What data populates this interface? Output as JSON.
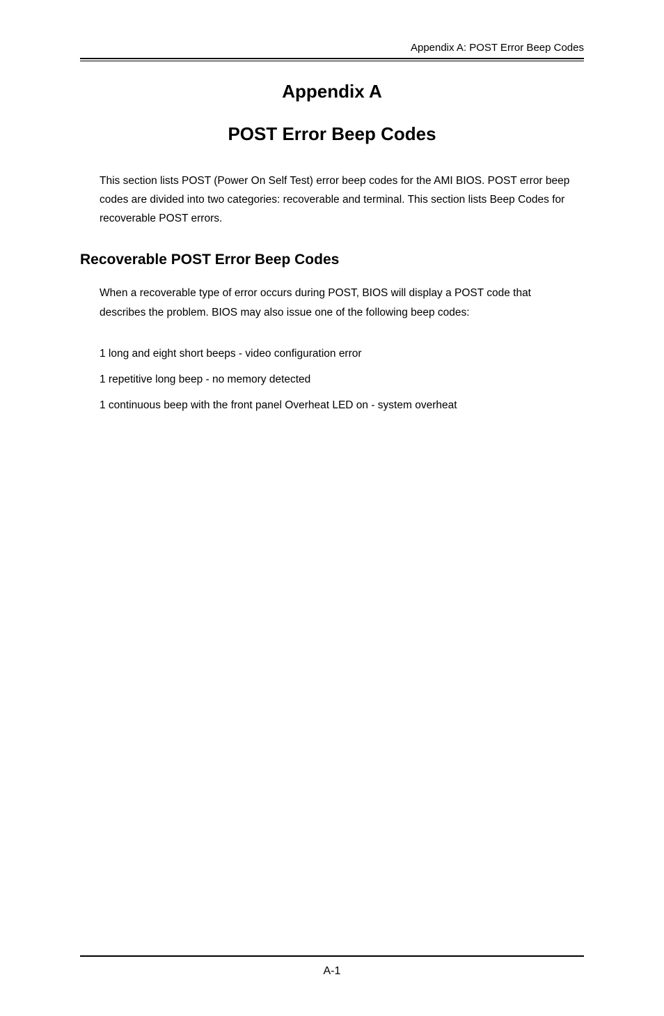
{
  "header": {
    "running": "Appendix A: POST Error Beep Codes"
  },
  "title": {
    "appendix": "Appendix A",
    "main": "POST Error Beep Codes"
  },
  "intro": "This section lists POST (Power On Self Test) error beep codes for the AMI BIOS. POST error beep codes are divided into two categories: recoverable and terminal. This section lists  Beep Codes for recoverable POST errors.",
  "section": {
    "heading": "Recoverable POST Error Beep Codes",
    "body": "When a recoverable type of error occurs during POST, BIOS will display a POST code that describes the problem. BIOS may also issue one of the following beep codes:",
    "items": [
      "1 long and eight short beeps - video configuration error",
      "1 repetitive long beep - no memory detected",
      "1 continuous beep with the front panel Overheat LED on - system overheat"
    ]
  },
  "footer": {
    "page": "A-1"
  }
}
